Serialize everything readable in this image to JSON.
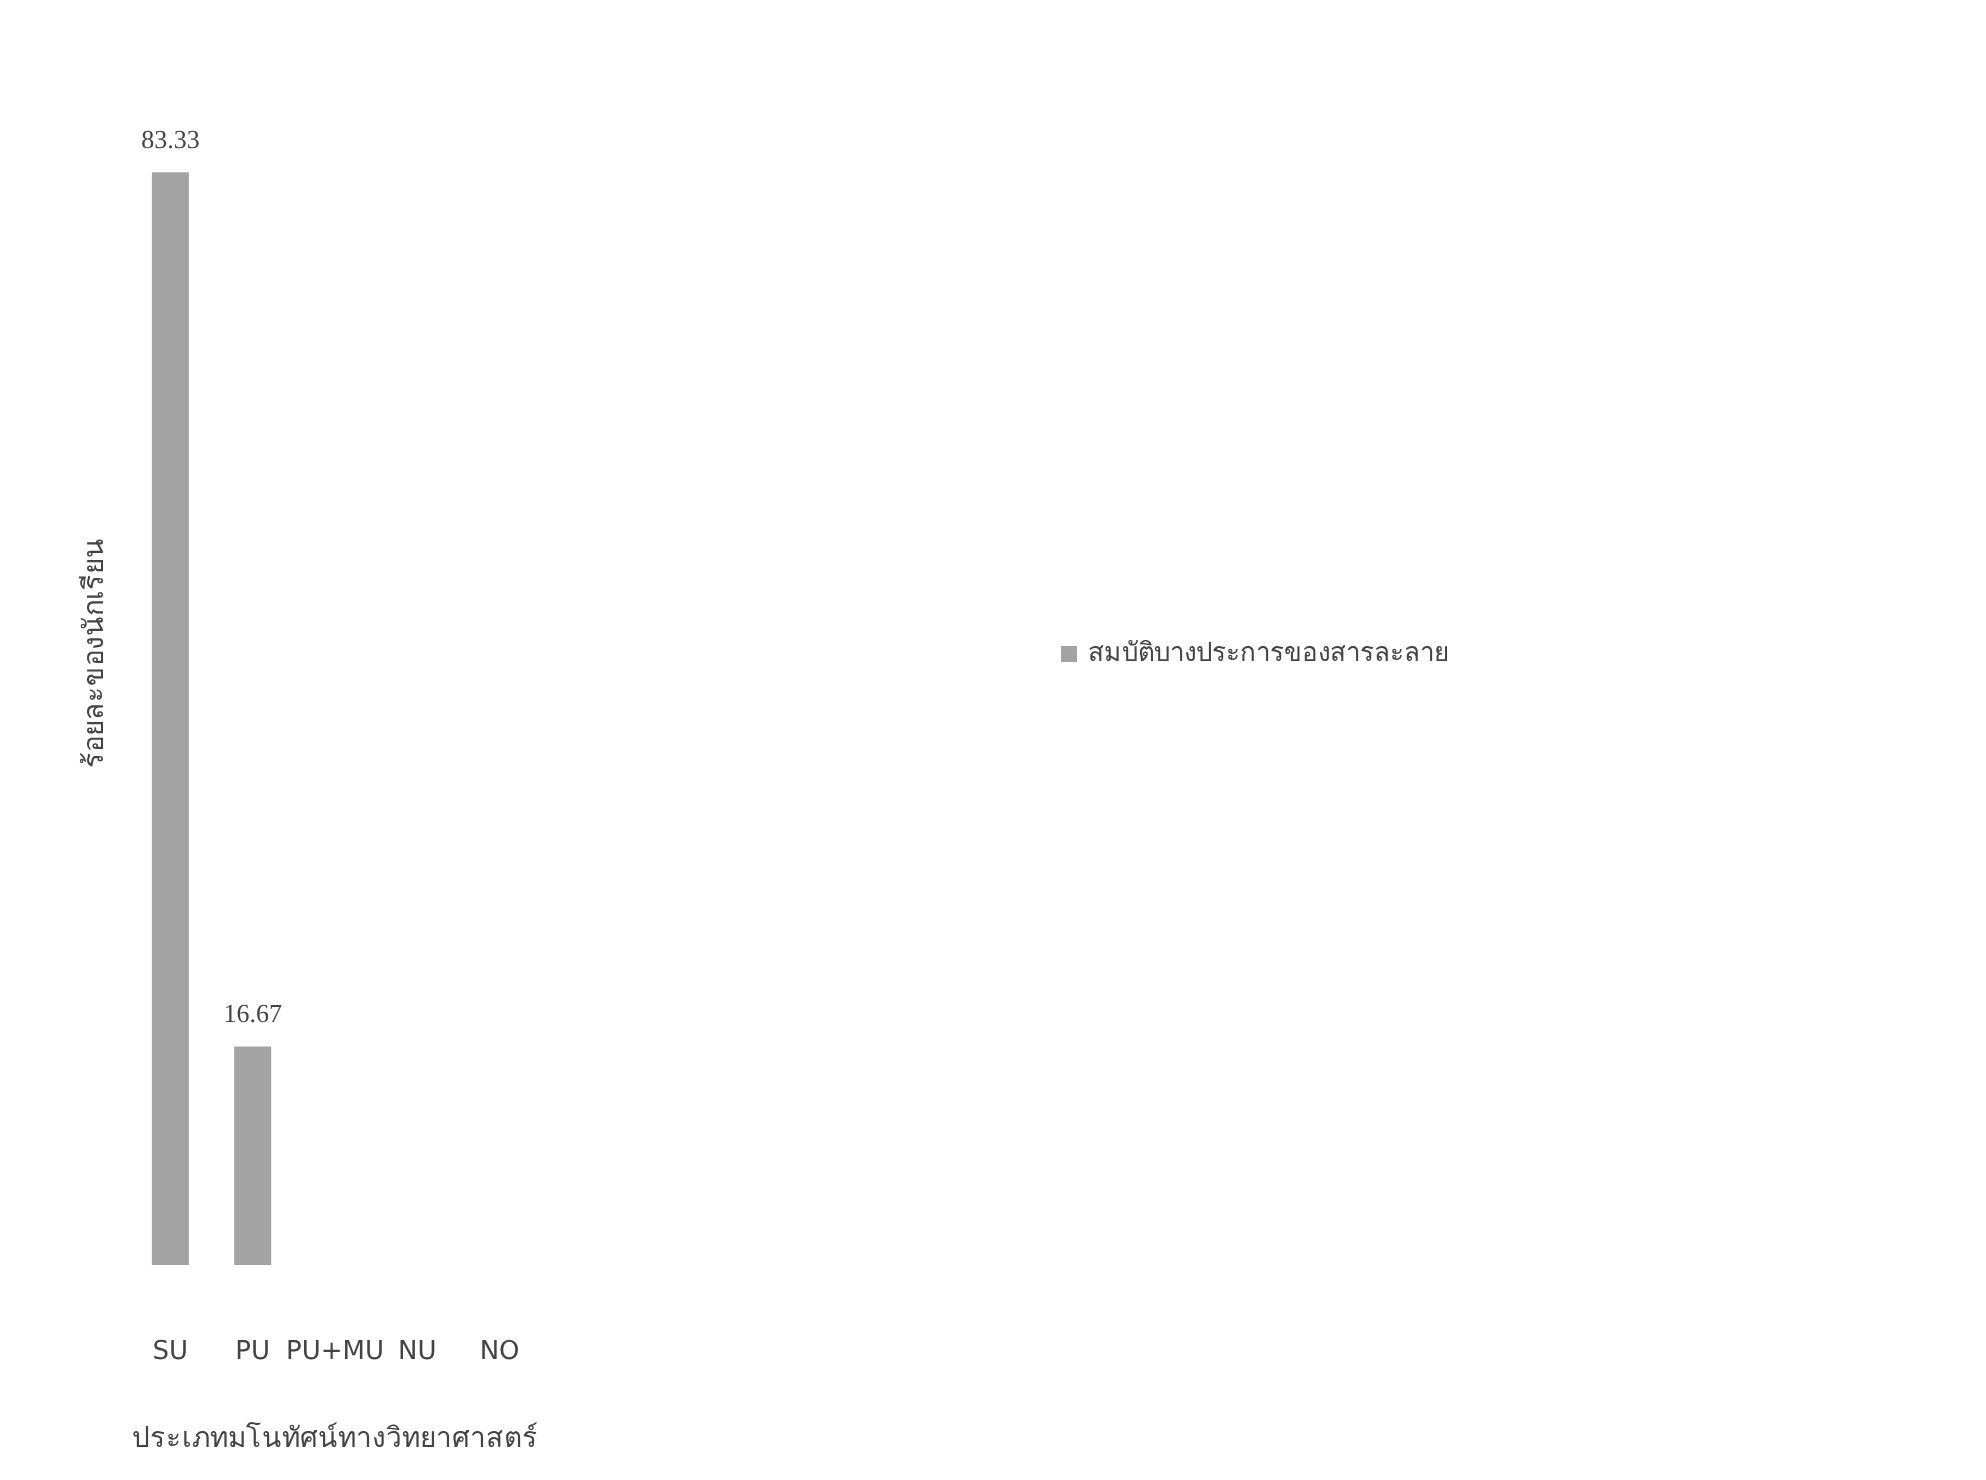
{
  "chart_data": {
    "type": "bar",
    "xlabel": "ประเภทมโนทัศน์ทางวิทยาศาสตร์",
    "ylabel": "ร้อยละของนักเรียน",
    "categories": [
      "SU",
      "PU",
      "PU+MU",
      "NU",
      "NO"
    ],
    "series": [
      {
        "name": "สมบัติบางประการของสารละลาย",
        "color": "#a3a3a3",
        "values": [
          83.33,
          16.67,
          null,
          null,
          null
        ],
        "value_labels": [
          "83.33",
          "16.67",
          null,
          null,
          null
        ]
      }
    ],
    "legend": "right",
    "grid": false
  }
}
